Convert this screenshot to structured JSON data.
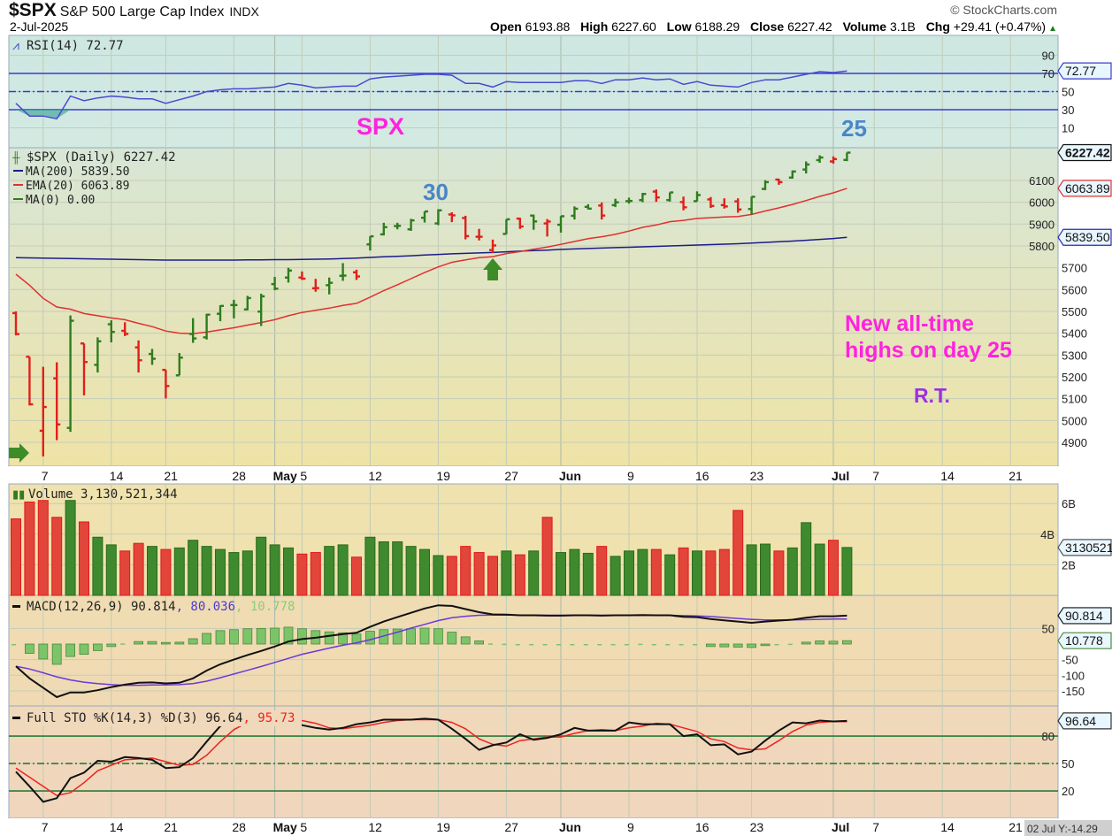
{
  "header": {
    "symbol": "$SPX",
    "name": "S&P 500 Large Cap Index",
    "exchange": "INDX",
    "date": "2-Jul-2025",
    "watermark": "© StockCharts.com",
    "open_label": "Open",
    "open": "6193.88",
    "high_label": "High",
    "high": "6227.60",
    "low_label": "Low",
    "low": "6188.29",
    "close_label": "Close",
    "close": "6227.42",
    "volume_label": "Volume",
    "volume": "3.1B",
    "chg_label": "Chg",
    "chg": "+29.41 (+0.47%)"
  },
  "annotations": {
    "spx": "SPX",
    "day30": "30",
    "day25": "25",
    "note_line1": "New all-time highs",
    "note_line2": "highs on day 25",
    "initials": "R.T.",
    "colors": {
      "magenta": "#ff22dd",
      "blue": "#4a86c8",
      "purple": "#9b30e0",
      "arrow": "#3c8c28"
    }
  },
  "colors": {
    "up": "#2e7d1e",
    "down": "#e0201c",
    "ma200": "#1c1c8c",
    "ema20": "#e03030",
    "rsi": "#4a4ad0",
    "macd": "#111111",
    "signal": "#6a3ad8",
    "hist": "#7cc46a",
    "stoK": "#111111",
    "stoD": "#ee2222",
    "level": "#2a7a3a"
  },
  "chart_data": {
    "type": "ohlc",
    "dates": [
      "2025-04-03",
      "2025-04-04",
      "2025-04-07",
      "2025-04-08",
      "2025-04-09",
      "2025-04-10",
      "2025-04-11",
      "2025-04-14",
      "2025-04-15",
      "2025-04-16",
      "2025-04-17",
      "2025-04-21",
      "2025-04-22",
      "2025-04-23",
      "2025-04-24",
      "2025-04-25",
      "2025-04-28",
      "2025-04-29",
      "2025-04-30",
      "2025-05-01",
      "2025-05-02",
      "2025-05-05",
      "2025-05-06",
      "2025-05-07",
      "2025-05-08",
      "2025-05-09",
      "2025-05-12",
      "2025-05-13",
      "2025-05-14",
      "2025-05-15",
      "2025-05-16",
      "2025-05-19",
      "2025-05-20",
      "2025-05-21",
      "2025-05-22",
      "2025-05-23",
      "2025-05-27",
      "2025-05-28",
      "2025-05-29",
      "2025-05-30",
      "2025-06-02",
      "2025-06-03",
      "2025-06-04",
      "2025-06-05",
      "2025-06-06",
      "2025-06-09",
      "2025-06-10",
      "2025-06-11",
      "2025-06-12",
      "2025-06-13",
      "2025-06-16",
      "2025-06-17",
      "2025-06-18",
      "2025-06-20",
      "2025-06-23",
      "2025-06-24",
      "2025-06-25",
      "2025-06-26",
      "2025-06-27",
      "2025-06-30",
      "2025-07-01",
      "2025-07-02"
    ],
    "x_ticks": [
      {
        "label": "7",
        "date": "2025-04-07"
      },
      {
        "label": "14",
        "date": "2025-04-14"
      },
      {
        "label": "21",
        "date": "2025-04-21"
      },
      {
        "label": "28",
        "date": "2025-04-28"
      },
      {
        "label": "May",
        "date": "2025-05-01",
        "bold": true
      },
      {
        "label": "5",
        "date": "2025-05-05"
      },
      {
        "label": "12",
        "date": "2025-05-12"
      },
      {
        "label": "19",
        "date": "2025-05-19"
      },
      {
        "label": "27",
        "date": "2025-05-27"
      },
      {
        "label": "Jun",
        "date": "2025-06-02",
        "bold": true
      },
      {
        "label": "9",
        "date": "2025-06-09"
      },
      {
        "label": "16",
        "date": "2025-06-16"
      },
      {
        "label": "23",
        "date": "2025-06-23"
      },
      {
        "label": "Jul",
        "date": "2025-07-01",
        "bold": true
      },
      {
        "label": "7",
        "date": "2025-07-07"
      },
      {
        "label": "14",
        "date": "2025-07-14"
      },
      {
        "label": "21",
        "date": "2025-07-21"
      }
    ],
    "cursor_readout": "02 Jul Y:-14.29",
    "price": {
      "legend": "$SPX (Daily) 6227.42",
      "ma200_legend": "MA(200) 5839.50",
      "ema20_legend": "EMA(20) 6063.89",
      "ma0_legend": "MA(0) 0.00",
      "last_tag": "6227.42",
      "ema_tag": "6063.89",
      "ma_tag": "5839.50",
      "y_ticks": [
        4900,
        5000,
        5100,
        5200,
        5300,
        5400,
        5500,
        5600,
        5700,
        5800,
        5900,
        6000,
        6100
      ],
      "open": [
        5492,
        5292,
        4953,
        5193,
        4966,
        5353,
        5255,
        5441,
        5411,
        5335,
        5305,
        5232,
        5207,
        5396,
        5381,
        5489,
        5529,
        5509,
        5499,
        5625,
        5655,
        5655,
        5606,
        5620,
        5663,
        5679,
        5807,
        5853,
        5891,
        5876,
        5929,
        5903,
        5944,
        5928,
        5842,
        5781,
        5855,
        5925,
        5939,
        5903,
        5897,
        5938,
        5979,
        5985,
        5987,
        6005,
        6010,
        6049,
        6010,
        6001,
        6005,
        6013,
        5987,
        6004,
        5969,
        6061,
        6104,
        6113,
        6150,
        6193,
        6187,
        6193.88
      ],
      "high": [
        5500,
        5292,
        5246,
        5267,
        5481,
        5353,
        5381,
        5459,
        5450,
        5367,
        5328,
        5232,
        5309,
        5469,
        5489,
        5528,
        5553,
        5571,
        5581,
        5658,
        5700,
        5683,
        5649,
        5655,
        5721,
        5691,
        5844,
        5906,
        5906,
        5924,
        5958,
        5968,
        5954,
        5938,
        5878,
        5829,
        5922,
        5929,
        5943,
        5923,
        5937,
        5981,
        5991,
        5999,
        6016,
        6021,
        6043,
        6059,
        6045,
        6026,
        6050,
        6024,
        6018,
        6018,
        6026,
        6101,
        6108,
        6146,
        6187,
        6215,
        6210,
        6227.6
      ],
      "low": [
        5390,
        5069,
        4835,
        4910,
        4948,
        5115,
        5220,
        5358,
        5387,
        5220,
        5255,
        5101,
        5207,
        5356,
        5371,
        5455,
        5468,
        5505,
        5433,
        5597,
        5632,
        5644,
        5590,
        5578,
        5640,
        5644,
        5779,
        5848,
        5876,
        5869,
        5907,
        5895,
        5909,
        5830,
        5825,
        5767,
        5854,
        5878,
        5874,
        5843,
        5861,
        5921,
        5967,
        5921,
        5978,
        5994,
        6000,
        6002,
        6003,
        5963,
        6004,
        5974,
        5971,
        5952,
        5943,
        6056,
        6080,
        6108,
        6132,
        6181,
        6177,
        6188.29
      ],
      "close": [
        5396,
        5074,
        5062,
        4982,
        5457,
        5268,
        5363,
        5406,
        5397,
        5276,
        5283,
        5158,
        5288,
        5376,
        5485,
        5525,
        5529,
        5561,
        5569,
        5604,
        5687,
        5650,
        5607,
        5631,
        5664,
        5660,
        5844,
        5886,
        5892,
        5917,
        5958,
        5963,
        5940,
        5845,
        5842,
        5802,
        5922,
        5889,
        5912.2,
        5911.7,
        5936,
        5970.4,
        5970.8,
        5939,
        6000,
        6006,
        6038,
        6022,
        6045,
        5977,
        6033,
        5983,
        5981,
        5967,
        6025,
        6092.18,
        6092.16,
        6141,
        6173,
        6205,
        6198,
        6227.42
      ],
      "ema20": [
        5670,
        5620,
        5560,
        5520,
        5510,
        5490,
        5480,
        5470,
        5462,
        5445,
        5430,
        5410,
        5400,
        5398,
        5405,
        5415,
        5425,
        5437,
        5449,
        5462,
        5480,
        5495,
        5505,
        5515,
        5527,
        5537,
        5565,
        5595,
        5622,
        5650,
        5678,
        5704,
        5725,
        5736,
        5746,
        5751,
        5765,
        5774,
        5785,
        5795,
        5807,
        5820,
        5833,
        5842,
        5853,
        5868,
        5885,
        5896,
        5911,
        5917,
        5926,
        5929,
        5933,
        5935,
        5944,
        5960,
        5974,
        5990,
        6008,
        6027,
        6043,
        6063.89
      ],
      "ma200": [
        5746,
        5745,
        5744,
        5743,
        5742,
        5741,
        5740,
        5739,
        5738,
        5737,
        5736,
        5735,
        5735,
        5735,
        5735,
        5735,
        5735,
        5736,
        5736,
        5737,
        5737,
        5738,
        5739,
        5740,
        5742,
        5744,
        5747,
        5750,
        5752,
        5755,
        5758,
        5761,
        5764,
        5766,
        5768,
        5770,
        5773,
        5776,
        5779,
        5781,
        5784,
        5786,
        5788,
        5790,
        5792,
        5794,
        5796,
        5798,
        5800,
        5802,
        5804,
        5806,
        5808,
        5810,
        5813,
        5816,
        5819,
        5822,
        5826,
        5830,
        5834,
        5839.5
      ]
    },
    "rsi": {
      "legend": "RSI(14) 72.77",
      "last_tag": "72.77",
      "y_ticks": [
        10,
        30,
        50,
        70,
        90
      ],
      "overbought": 70,
      "oversold": 30,
      "mid": 50,
      "values": [
        37,
        23,
        23,
        20,
        45,
        40,
        43,
        45,
        44,
        42,
        42,
        37,
        41,
        45,
        50,
        52,
        53,
        53,
        54,
        55,
        59,
        57,
        54,
        55,
        56,
        56,
        64,
        66,
        67,
        68,
        69,
        69,
        68,
        59,
        59,
        55,
        61,
        60,
        60,
        60,
        60,
        62,
        62,
        59,
        63,
        63,
        65,
        63,
        64,
        58,
        61,
        57,
        56,
        55,
        60,
        63,
        63,
        66,
        69,
        72,
        71,
        72.77
      ]
    },
    "volume": {
      "legend": "Volume 3,130,521,344",
      "last_tag": "3130521",
      "unit": "B",
      "y_ticks": [
        {
          "v": 2,
          "label": "2B"
        },
        {
          "v": 4,
          "label": "4B"
        },
        {
          "v": 6,
          "label": "6B"
        }
      ],
      "values": [
        5.0,
        6.1,
        6.2,
        5.1,
        6.2,
        4.8,
        3.8,
        3.3,
        2.9,
        3.4,
        3.2,
        3.0,
        3.1,
        3.6,
        3.2,
        3.0,
        2.8,
        2.9,
        3.8,
        3.3,
        3.1,
        2.7,
        2.8,
        3.2,
        3.3,
        2.5,
        3.8,
        3.5,
        3.5,
        3.2,
        3.0,
        2.6,
        2.55,
        3.2,
        2.8,
        2.55,
        2.9,
        2.65,
        2.9,
        5.1,
        2.8,
        3.0,
        2.75,
        3.2,
        2.55,
        2.9,
        3.0,
        3.0,
        2.65,
        3.1,
        2.9,
        2.9,
        3.0,
        5.55,
        3.3,
        3.35,
        2.9,
        3.1,
        4.75,
        3.35,
        3.6,
        3.13
      ]
    },
    "macd": {
      "legend_main": "MACD(12,26,9) 90.814",
      "legend_signal": ", 80.036",
      "legend_hist": ", 10.778",
      "last_tag": "90.814",
      "hist_tag": "10.778",
      "y_ticks": [
        50,
        -50,
        -100,
        -150
      ],
      "macd": [
        -71,
        -110,
        -140,
        -170,
        -155,
        -155,
        -148,
        -138,
        -130,
        -124,
        -123,
        -126,
        -124,
        -110,
        -85,
        -65,
        -50,
        -35,
        -22,
        -8,
        8,
        16,
        20,
        26,
        32,
        36,
        55,
        72,
        86,
        100,
        114,
        124,
        122,
        112,
        102,
        95,
        94,
        92,
        92,
        91,
        91,
        92,
        92,
        91,
        92,
        92,
        93,
        92,
        92,
        87,
        86,
        80,
        76,
        72,
        68,
        72,
        75,
        78,
        84,
        89,
        89,
        90.814
      ],
      "signal": [
        -71,
        -80,
        -92,
        -105,
        -115,
        -122,
        -127,
        -130,
        -132,
        -132,
        -131,
        -131,
        -130,
        -127,
        -119,
        -108,
        -96,
        -84,
        -72,
        -59,
        -46,
        -33,
        -23,
        -13,
        -4,
        4,
        14,
        26,
        38,
        51,
        63,
        75,
        84,
        89,
        92,
        93,
        93,
        93,
        93,
        92,
        92,
        92,
        92,
        92,
        92,
        92,
        92,
        92,
        92,
        91,
        90,
        88,
        85,
        82,
        79,
        77,
        77,
        77,
        78,
        79,
        80,
        80.036
      ],
      "histogram": [
        0,
        -30,
        -48,
        -65,
        -40,
        -33,
        -21,
        -8,
        2,
        8,
        8,
        5,
        6,
        17,
        34,
        43,
        46,
        49,
        50,
        51,
        54,
        49,
        43,
        39,
        36,
        32,
        41,
        46,
        48,
        49,
        51,
        49,
        38,
        23,
        10,
        2,
        1,
        -1,
        -1,
        -1,
        -1,
        0,
        0,
        -1,
        0,
        0,
        1,
        0,
        0,
        -4,
        -4,
        -8,
        -9,
        -10,
        -11,
        -5,
        -2,
        1,
        6,
        10,
        9,
        10.778
      ]
    },
    "stochastic": {
      "legend_main": "Full STO %K(14,3) %D(3) 96.64",
      "legend_d": ", 95.73",
      "last_tag": "96.64",
      "y_ticks": [
        20,
        50,
        80
      ],
      "k": [
        41,
        25,
        8,
        12,
        34,
        40,
        53,
        52,
        57,
        56,
        54,
        45,
        46,
        56,
        74,
        91,
        97,
        98,
        97,
        99,
        100,
        92,
        89,
        87,
        89,
        93,
        95,
        98,
        98,
        98,
        99,
        98,
        88,
        77,
        65,
        70,
        73,
        82,
        76,
        78,
        82,
        89,
        86,
        86,
        86,
        95,
        93,
        93,
        93,
        80,
        82,
        70,
        71,
        60,
        63,
        75,
        86,
        95,
        94,
        97,
        96,
        96.64
      ],
      "d": [
        45,
        35,
        25,
        15,
        18,
        29,
        42,
        48,
        54,
        55,
        56,
        52,
        48,
        49,
        59,
        74,
        87,
        95,
        97,
        98,
        99,
        97,
        94,
        89,
        88,
        90,
        92,
        95,
        97,
        98,
        98,
        98,
        95,
        88,
        77,
        71,
        69,
        75,
        77,
        79,
        79,
        83,
        86,
        87,
        86,
        89,
        91,
        94,
        93,
        89,
        85,
        77,
        74,
        67,
        65,
        66,
        75,
        85,
        92,
        95,
        96,
        95.73
      ]
    }
  }
}
